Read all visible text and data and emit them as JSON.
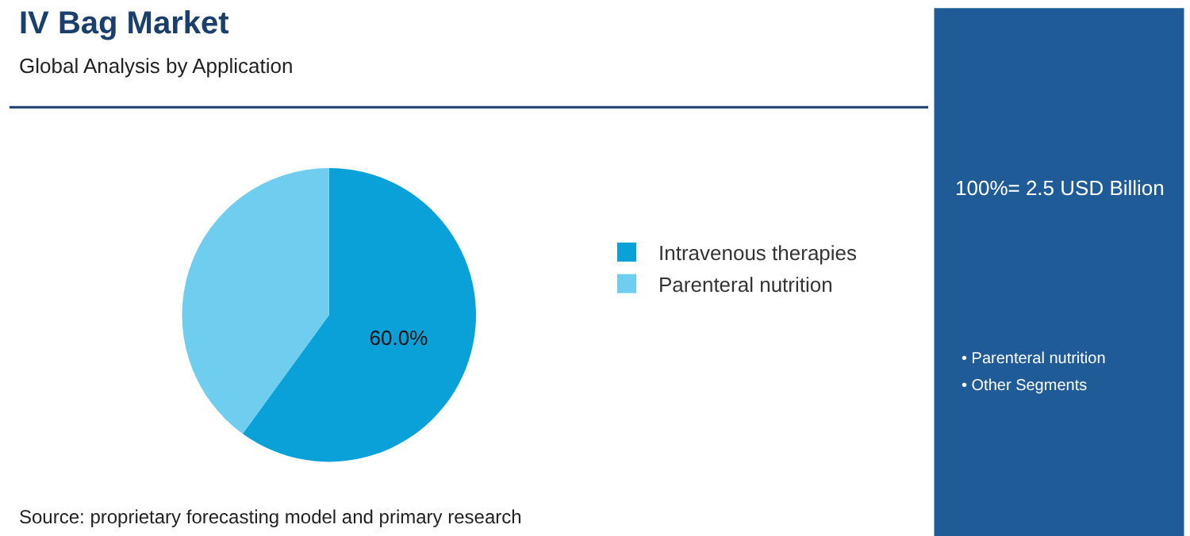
{
  "chart_data": {
    "type": "pie",
    "title": "IV Bag Market",
    "subtitle": "Global Analysis by Application",
    "categories": [
      "Intravenous therapies",
      "Parenteral nutrition"
    ],
    "values": [
      60,
      40
    ],
    "colors": [
      "#0aa0d8",
      "#6fcdf0"
    ],
    "value_labels": [
      "60.0%",
      null
    ],
    "legend": "right",
    "annotations": [
      "100%= 2.5 USD Billion",
      "• Parenteral nutrition",
      "• Other Segments",
      "Source: proprietary forecasting model and primary research"
    ]
  }
}
